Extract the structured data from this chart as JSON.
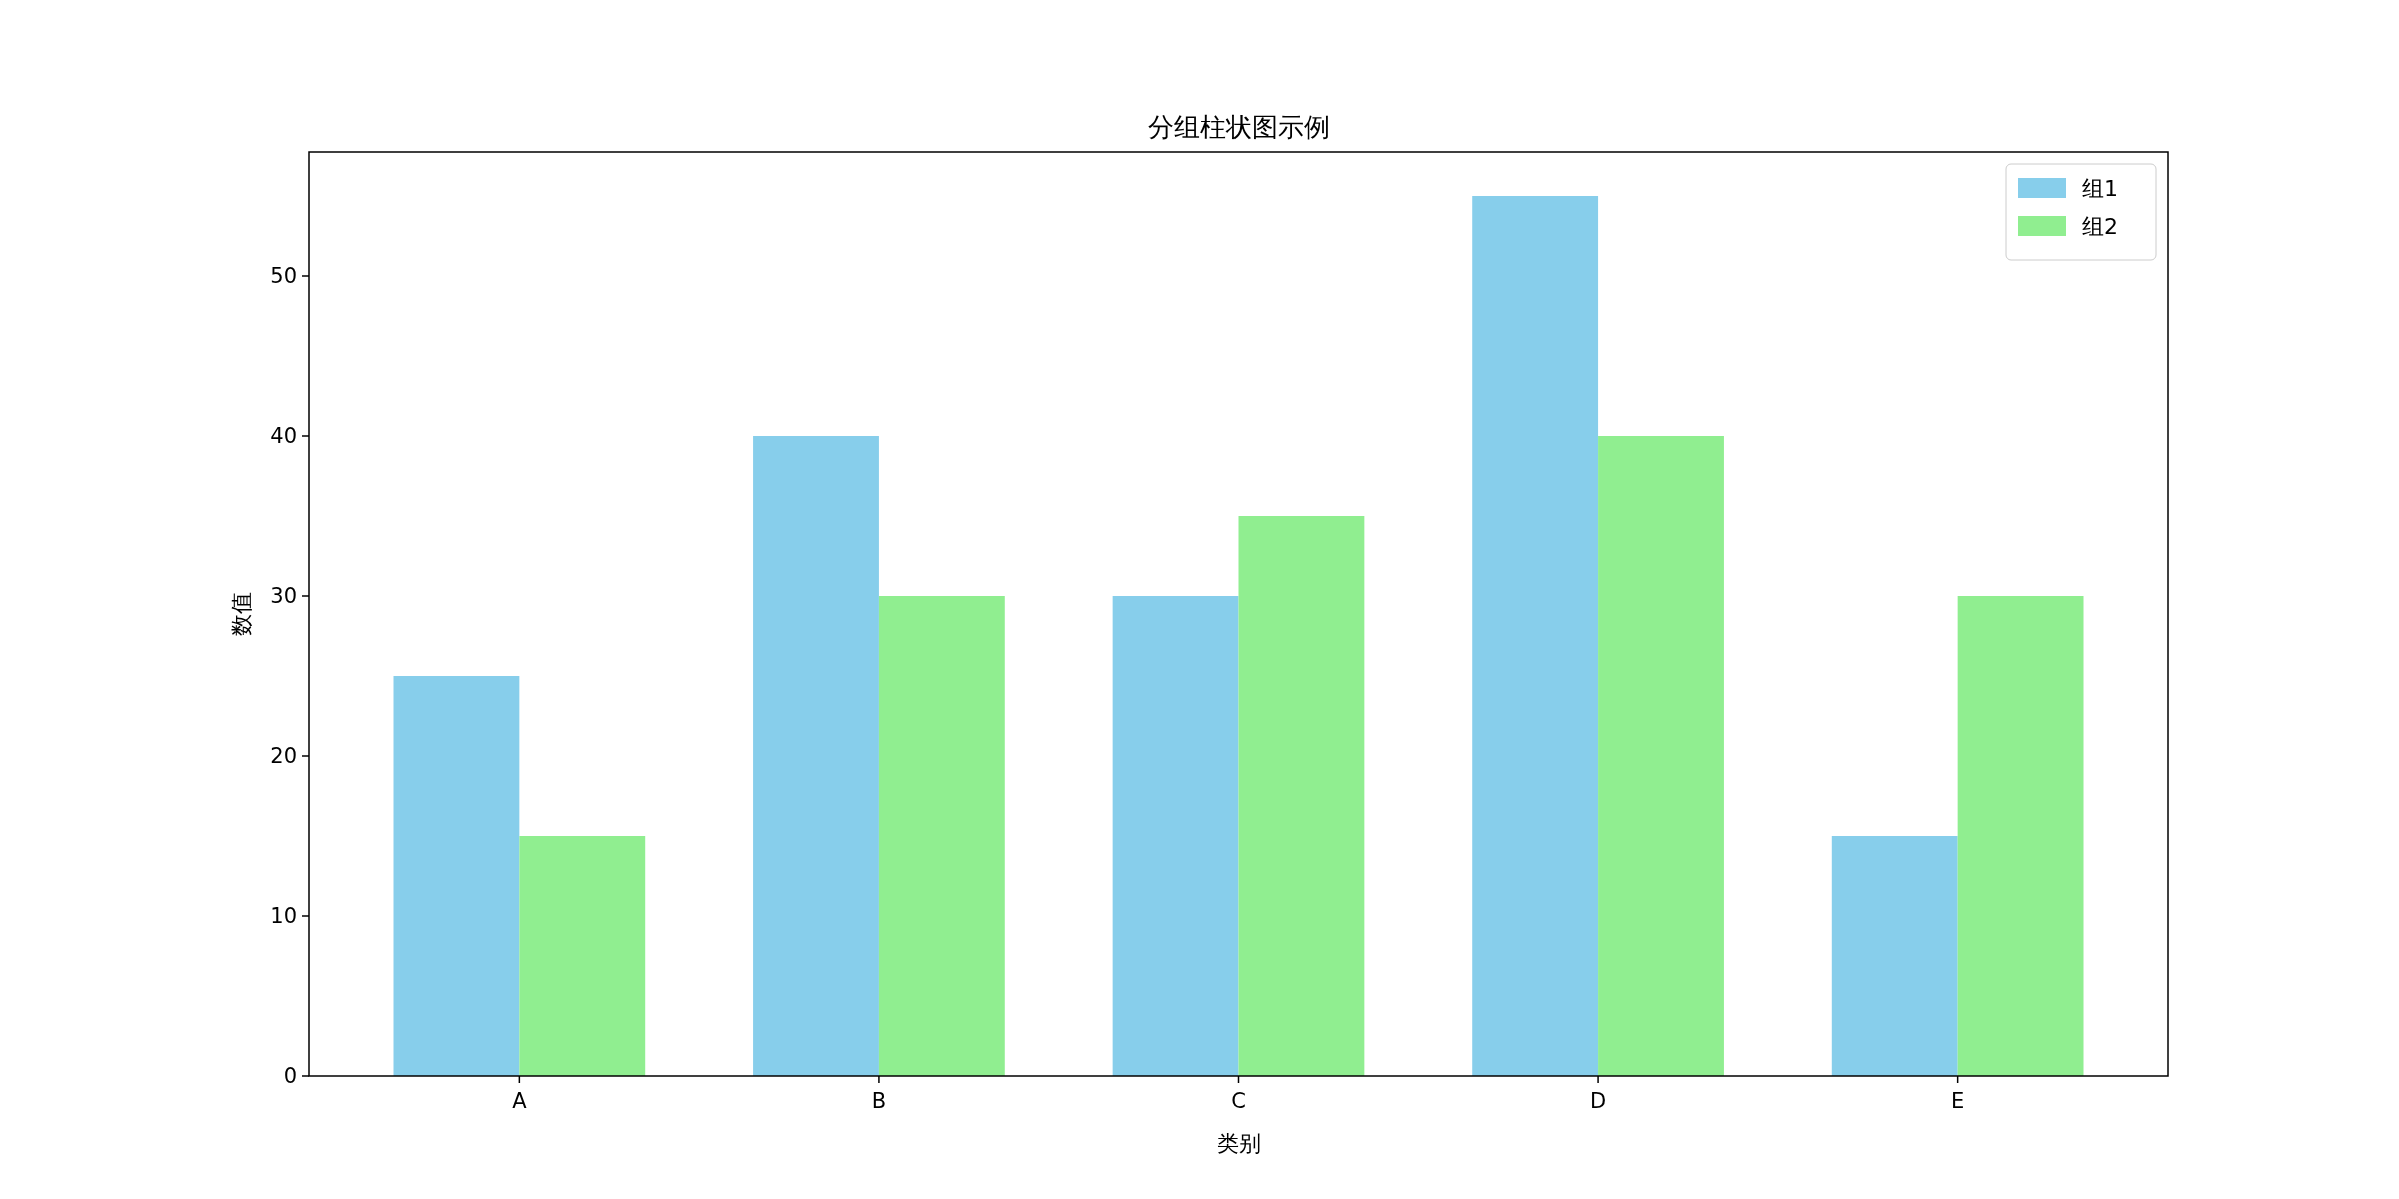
{
  "chart_data": {
    "type": "bar",
    "title": "分组柱状图示例",
    "xlabel": "类别",
    "ylabel": "数值",
    "categories": [
      "A",
      "B",
      "C",
      "D",
      "E"
    ],
    "series": [
      {
        "name": "组1",
        "color": "#87ceeb",
        "values": [
          25,
          40,
          30,
          55,
          15
        ]
      },
      {
        "name": "组2",
        "color": "#90ee90",
        "values": [
          15,
          30,
          35,
          40,
          30
        ]
      }
    ],
    "ylim": [
      0,
      57.75
    ],
    "yticks": [
      0,
      10,
      20,
      30,
      40,
      50
    ],
    "legend": "top right"
  }
}
